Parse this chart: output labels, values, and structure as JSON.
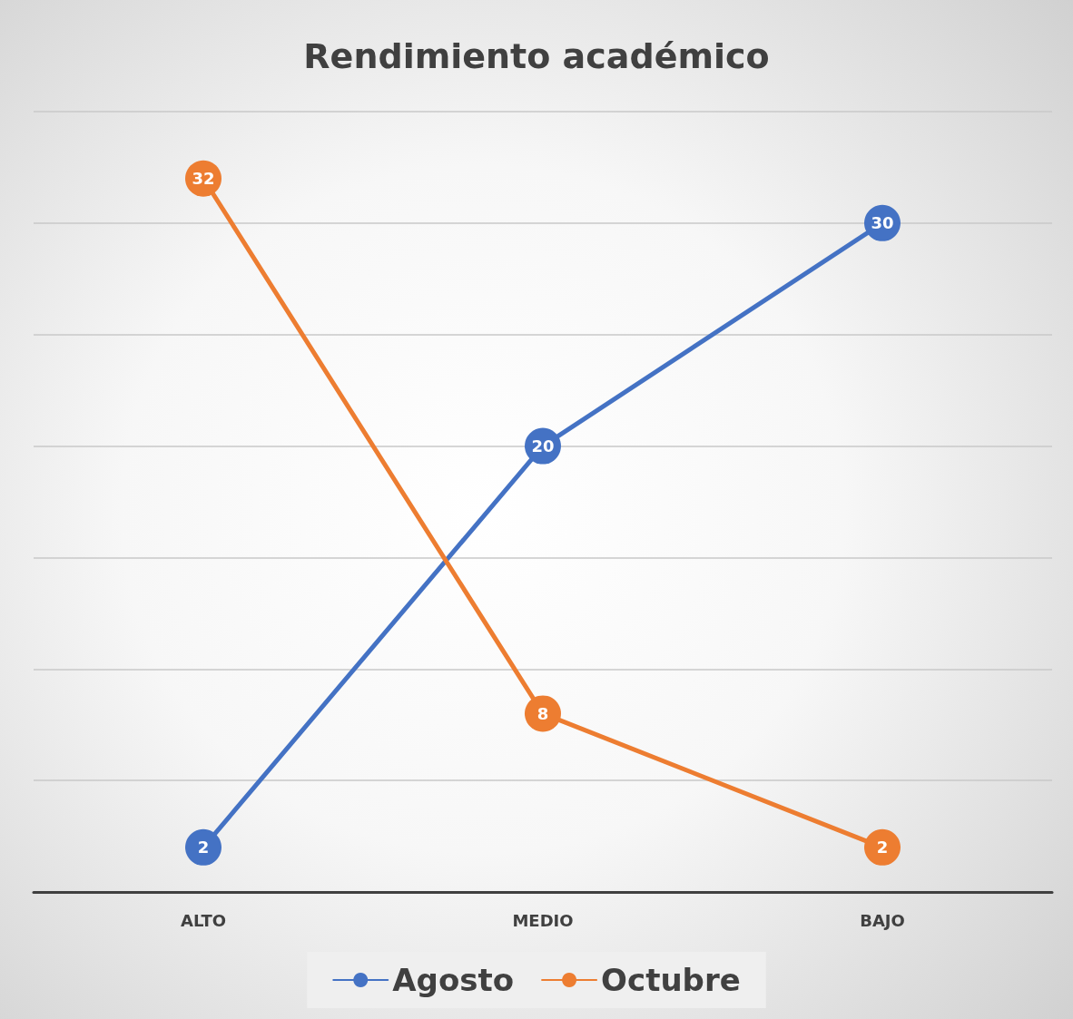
{
  "chart_data": {
    "type": "line",
    "title": "Rendimiento académico",
    "categories": [
      "ALTO",
      "MEDIO",
      "BAJO"
    ],
    "series": [
      {
        "name": "Agosto",
        "color": "#4472c4",
        "values": [
          2,
          20,
          30
        ]
      },
      {
        "name": "Octubre",
        "color": "#ed7d31",
        "values": [
          32,
          8,
          2
        ]
      }
    ],
    "ylim": [
      0,
      35
    ],
    "yticks": [
      0,
      5,
      10,
      15,
      20,
      25,
      30,
      35
    ],
    "tick_labels": "x",
    "grid": "y",
    "legend": "bottom",
    "marker": "circle",
    "line_style": "solid",
    "data_labels": true
  }
}
